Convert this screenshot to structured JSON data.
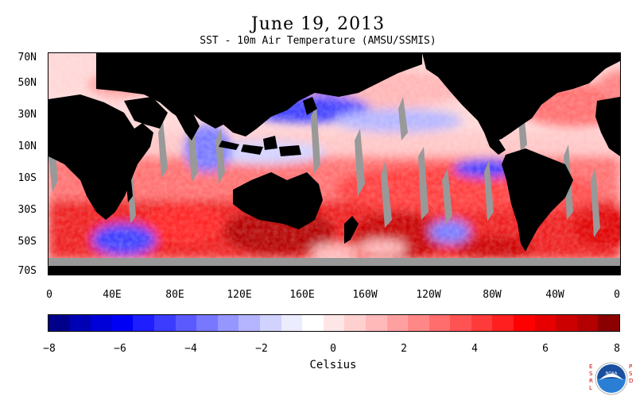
{
  "header": {
    "title": "June 19, 2013",
    "subtitle": "SST - 10m Air Temperature (AMSU/SSMIS)"
  },
  "map": {
    "lat_labels": [
      "70N",
      "50N",
      "30N",
      "10N",
      "10S",
      "30S",
      "50S",
      "70S"
    ],
    "lon_labels": [
      "0",
      "40E",
      "80E",
      "120E",
      "160E",
      "160W",
      "120W",
      "80W",
      "40W",
      "0"
    ]
  },
  "colorbar": {
    "colors": [
      "#00008b",
      "#0000b4",
      "#0000d8",
      "#0000f5",
      "#1e1eff",
      "#3c3cff",
      "#5a5aff",
      "#7878ff",
      "#9696ff",
      "#b4b4ff",
      "#d2d2ff",
      "#ececff",
      "#ffffff",
      "#ffe6e6",
      "#ffd0d0",
      "#ffb9b9",
      "#ffa0a0",
      "#ff8787",
      "#ff6d6d",
      "#ff5353",
      "#ff3a3a",
      "#ff1f1f",
      "#ff0000",
      "#e60000",
      "#cc0000",
      "#b40000",
      "#8b0000"
    ],
    "tick_labels": [
      "−8",
      "−6",
      "−4",
      "−2",
      "0",
      "2",
      "4",
      "6",
      "8"
    ],
    "units_label": "Celsius"
  },
  "logo": {
    "left_text": "ESRL",
    "right_text": "PSD",
    "center_text": "NOAA",
    "colors": {
      "outer": "#ffffff",
      "top": "#1a4fa0",
      "bottom": "#2a7fd4",
      "bird": "#ffffff"
    }
  },
  "palette": {
    "land": "#000000",
    "missing": "#999999"
  }
}
